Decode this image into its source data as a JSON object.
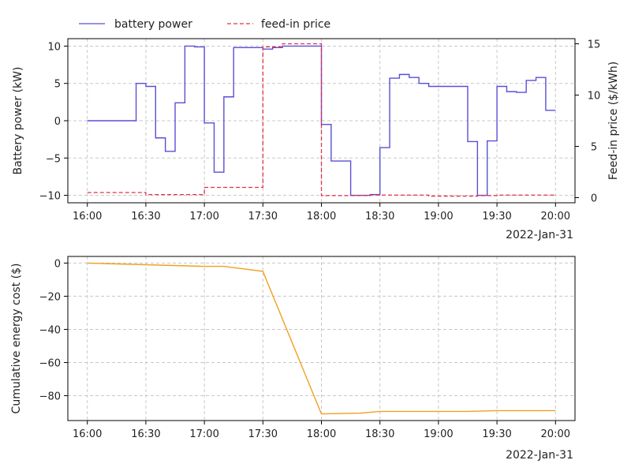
{
  "chart_data": [
    {
      "type": "line",
      "step": true,
      "xlabel": "2022-Jan-31",
      "ylabel": "Battery power (kW)",
      "y2label": "Feed-in price ($/kWh)",
      "x_ticks": [
        "16:00",
        "16:30",
        "17:00",
        "17:30",
        "18:00",
        "18:30",
        "19:00",
        "19:30",
        "20:00"
      ],
      "x_tick_minutes": [
        0,
        30,
        60,
        90,
        120,
        150,
        180,
        210,
        240
      ],
      "xlim": [
        -10,
        250
      ],
      "ylim": [
        -11,
        11
      ],
      "y_ticks": [
        -10,
        -5,
        0,
        5,
        10
      ],
      "y2lim": [
        -0.5,
        15.5
      ],
      "y2_ticks": [
        0,
        5,
        10,
        15
      ],
      "grid": true,
      "legend_position": "top-left, above the plot",
      "series": [
        {
          "name": "battery power",
          "axis": "left",
          "color": "#5a4fd6",
          "line_style": "solid",
          "minutes": [
            0,
            25,
            30,
            35,
            40,
            45,
            50,
            55,
            60,
            65,
            70,
            75,
            80,
            85,
            90,
            95,
            100,
            105,
            110,
            115,
            120,
            125,
            130,
            135,
            140,
            145,
            150,
            155,
            160,
            165,
            170,
            175,
            180,
            185,
            190,
            195,
            200,
            205,
            210,
            215,
            220,
            225,
            230,
            235,
            240
          ],
          "values": [
            0,
            5,
            4.6,
            -2.3,
            -4.1,
            2.4,
            10,
            9.9,
            -0.3,
            -6.9,
            3.2,
            9.8,
            9.8,
            9.8,
            9.6,
            9.8,
            10,
            10,
            10,
            10,
            -0.5,
            -5.4,
            -5.4,
            -10,
            -10,
            -9.9,
            -3.6,
            5.7,
            6.2,
            5.8,
            5,
            4.6,
            4.6,
            4.6,
            4.6,
            -2.8,
            -10,
            -2.7,
            4.6,
            3.9,
            3.8,
            5.4,
            5.8,
            1.4,
            1.4
          ]
        },
        {
          "name": "feed-in price",
          "axis": "right",
          "color": "#e0304a",
          "line_style": "dashed",
          "minutes": [
            0,
            25,
            30,
            35,
            40,
            45,
            50,
            55,
            60,
            65,
            70,
            75,
            80,
            85,
            90,
            95,
            100,
            105,
            110,
            115,
            120,
            125,
            130,
            135,
            140,
            145,
            150,
            155,
            160,
            165,
            170,
            175,
            180,
            185,
            190,
            195,
            200,
            205,
            210,
            215,
            220,
            225,
            230,
            235,
            240
          ],
          "values": [
            0.5,
            0.5,
            0.3,
            0.3,
            0.3,
            0.3,
            0.3,
            0.3,
            1,
            1,
            1,
            1,
            1,
            1,
            14.7,
            14.7,
            15,
            15,
            15,
            15,
            0.2,
            0.2,
            0.2,
            0.2,
            0.2,
            0.25,
            0.25,
            0.25,
            0.25,
            0.25,
            0.25,
            0.15,
            0.15,
            0.15,
            0.15,
            0.15,
            0.2,
            0.2,
            0.25,
            0.25,
            0.25,
            0.25,
            0.25,
            0.25,
            0.25
          ]
        }
      ]
    },
    {
      "type": "line",
      "xlabel": "2022-Jan-31",
      "ylabel": "Cumulative energy cost ($)",
      "x_ticks": [
        "16:00",
        "16:30",
        "17:00",
        "17:30",
        "18:00",
        "18:30",
        "19:00",
        "19:30",
        "20:00"
      ],
      "x_tick_minutes": [
        0,
        30,
        60,
        90,
        120,
        150,
        180,
        210,
        240
      ],
      "xlim": [
        -10,
        250
      ],
      "ylim": [
        -95,
        4
      ],
      "y_ticks": [
        0,
        -20,
        -40,
        -60,
        -80
      ],
      "grid": true,
      "series": [
        {
          "color": "#f0a020",
          "line_style": "solid",
          "minutes": [
            0,
            30,
            60,
            70,
            90,
            120,
            140,
            150,
            180,
            195,
            210,
            240
          ],
          "values": [
            0,
            -1,
            -2,
            -2,
            -5,
            -91,
            -90.5,
            -89.5,
            -89.5,
            -89.5,
            -89,
            -89
          ]
        }
      ]
    }
  ]
}
